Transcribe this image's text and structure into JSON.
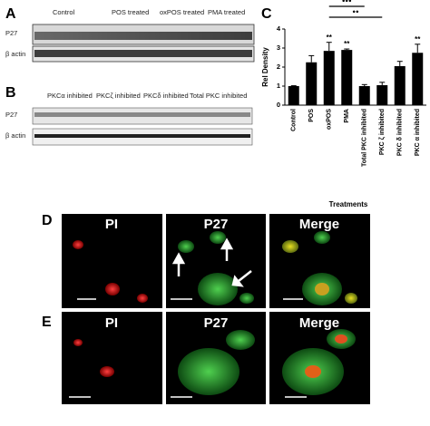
{
  "panel_a": {
    "letter": "A",
    "lanes": [
      "Control",
      "POS treated",
      "oxPOS treated",
      "PMA treated"
    ],
    "rows": [
      "P27",
      "β actin"
    ]
  },
  "panel_b": {
    "letter": "B",
    "lanes": [
      "PKCα inhibited",
      "PKCζ inhibited",
      "PKCδ inhibited",
      "Total PKC inhibited"
    ],
    "rows": [
      "P27",
      "β actin"
    ]
  },
  "chart_data": {
    "type": "bar",
    "letter": "C",
    "y_label": "Rel Density",
    "x_label": "Treatments",
    "categories": [
      "Control",
      "POS",
      "oxPOS",
      "PMA",
      "Total PKC inhibited",
      "PKC ζ inhibited",
      "PKC δ inhibited",
      "PKC α inhibited"
    ],
    "values": [
      1.0,
      2.25,
      2.85,
      2.9,
      1.0,
      1.05,
      2.05,
      2.75
    ],
    "errors": [
      0.02,
      0.35,
      0.45,
      0.05,
      0.08,
      0.15,
      0.25,
      0.45
    ],
    "significance": [
      null,
      null,
      "**",
      "**",
      null,
      null,
      null,
      "**"
    ],
    "comparisons": [
      "●●",
      "●●●"
    ],
    "color": "#000000",
    "ylim": [
      0,
      4
    ],
    "yticks": [
      0,
      1,
      2,
      3,
      4
    ]
  },
  "panel_d": {
    "letter": "D",
    "titles": [
      "PI",
      "P27",
      "Merge"
    ]
  },
  "panel_e": {
    "letter": "E",
    "titles": [
      "PI",
      "P27",
      "Merge"
    ]
  }
}
